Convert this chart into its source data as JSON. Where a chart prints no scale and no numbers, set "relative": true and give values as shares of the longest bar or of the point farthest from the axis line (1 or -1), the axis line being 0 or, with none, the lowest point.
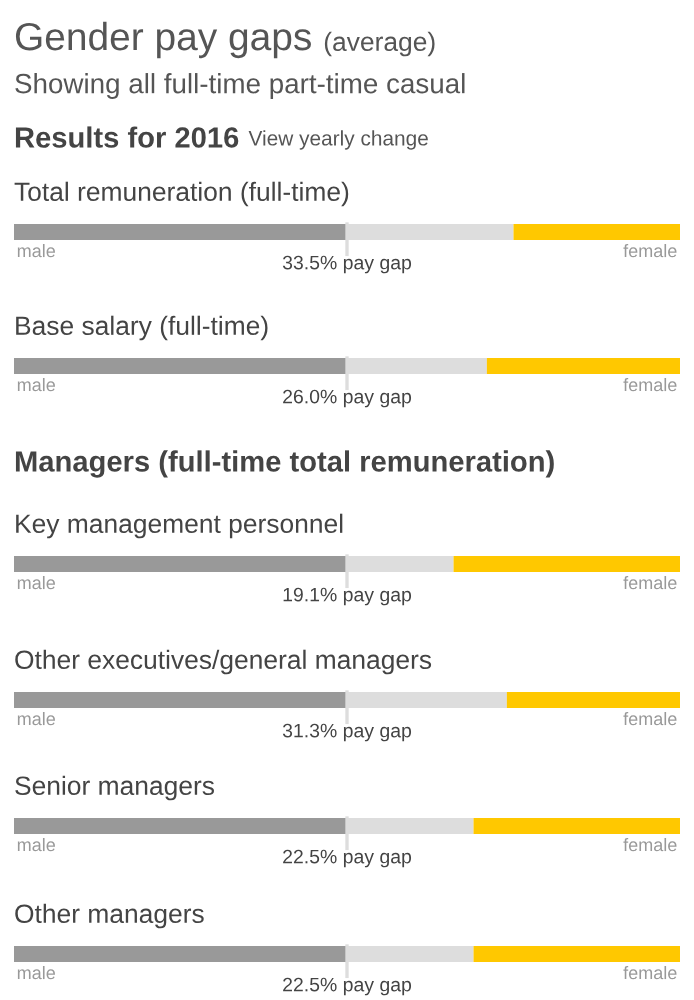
{
  "chart_data": [
    {
      "type": "bar",
      "stacked": true,
      "orientation": "horizontal",
      "relative": true,
      "title": "Total remuneration (full-time)",
      "annotations": [
        "Gender pay gaps",
        "(average)",
        "Showing all full-time part-time casual",
        "Results for 2016",
        "View yearly change",
        "33.5% pay gap"
      ],
      "ref_lines": [
        {
          "axis": "x",
          "value": 0.5,
          "color": "#dddddd"
        }
      ],
      "categories": [
        null
      ],
      "series": [
        {
          "name": "male",
          "color": "#999999",
          "values": [
            0.5
          ]
        },
        {
          "color": "#dddddd",
          "values": [
            0.25
          ]
        },
        {
          "name": "female",
          "color": "#ffc800",
          "values": [
            0.25
          ]
        }
      ]
    },
    {
      "type": "bar",
      "stacked": true,
      "orientation": "horizontal",
      "relative": true,
      "title": "Base salary (full-time)",
      "annotations": [
        "26.0% pay gap"
      ],
      "ref_lines": [
        {
          "axis": "x",
          "value": 0.5,
          "color": "#dddddd"
        }
      ],
      "categories": [
        null
      ],
      "series": [
        {
          "name": "male",
          "color": "#999999",
          "values": [
            0.5
          ]
        },
        {
          "color": "#dddddd",
          "values": [
            0.21
          ]
        },
        {
          "name": "female",
          "color": "#ffc800",
          "values": [
            0.29
          ]
        }
      ]
    },
    {
      "type": "bar",
      "stacked": true,
      "orientation": "horizontal",
      "relative": true,
      "title": "Key management personnel",
      "annotations": [
        "Managers (full-time total remuneration)",
        "19.1% pay gap"
      ],
      "ref_lines": [
        {
          "axis": "x",
          "value": 0.5,
          "color": "#dddddd"
        }
      ],
      "categories": [
        null
      ],
      "series": [
        {
          "name": "male",
          "color": "#999999",
          "values": [
            0.5
          ]
        },
        {
          "color": "#dddddd",
          "values": [
            0.16
          ]
        },
        {
          "name": "female",
          "color": "#ffc800",
          "values": [
            0.34
          ]
        }
      ]
    },
    {
      "type": "bar",
      "stacked": true,
      "orientation": "horizontal",
      "relative": true,
      "title": "Other executives/general managers",
      "annotations": [
        "31.3% pay gap"
      ],
      "ref_lines": [
        {
          "axis": "x",
          "value": 0.5,
          "color": "#dddddd"
        }
      ],
      "categories": [
        null
      ],
      "series": [
        {
          "name": "male",
          "color": "#999999",
          "values": [
            0.5
          ]
        },
        {
          "color": "#dddddd",
          "values": [
            0.24
          ]
        },
        {
          "name": "female",
          "color": "#ffc800",
          "values": [
            0.26
          ]
        }
      ]
    },
    {
      "type": "bar",
      "stacked": true,
      "orientation": "horizontal",
      "relative": true,
      "title": "Senior managers",
      "annotations": [
        "22.5% pay gap"
      ],
      "ref_lines": [
        {
          "axis": "x",
          "value": 0.5,
          "color": "#dddddd"
        }
      ],
      "categories": [
        null
      ],
      "series": [
        {
          "name": "male",
          "color": "#999999",
          "values": [
            0.5
          ]
        },
        {
          "color": "#dddddd",
          "values": [
            0.19
          ]
        },
        {
          "name": "female",
          "color": "#ffc800",
          "values": [
            0.31
          ]
        }
      ]
    },
    {
      "type": "bar",
      "stacked": true,
      "orientation": "horizontal",
      "relative": true,
      "title": "Other managers",
      "annotations": [
        "22.5% pay gap"
      ],
      "ref_lines": [
        {
          "axis": "x",
          "value": 0.5,
          "color": "#dddddd"
        }
      ],
      "categories": [
        null
      ],
      "series": [
        {
          "name": "male",
          "color": "#999999",
          "values": [
            0.5
          ]
        },
        {
          "color": "#dddddd",
          "values": [
            0.19
          ]
        },
        {
          "name": "female",
          "color": "#ffc800",
          "values": [
            0.31
          ]
        }
      ]
    }
  ]
}
